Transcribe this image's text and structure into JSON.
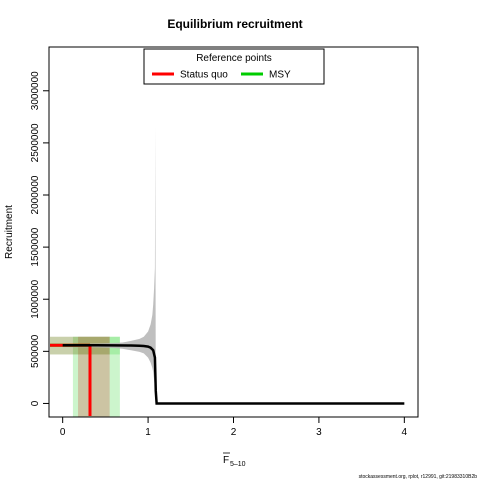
{
  "chart_data": {
    "type": "line",
    "title": "Equilibrium recruitment",
    "xlabel_main": "F",
    "xlabel_sub": "5–10",
    "ylabel": "Recruitment",
    "xlim": [
      -0.16,
      4.16
    ],
    "ylim": [
      -130000,
      3420000
    ],
    "x_ticks": [
      0,
      1,
      2,
      3,
      4
    ],
    "x_tick_labels": [
      "0",
      "1",
      "2",
      "3",
      "4"
    ],
    "y_ticks": [
      0,
      500000,
      1000000,
      1500000,
      2000000,
      2500000,
      3000000
    ],
    "y_tick_labels": [
      "0",
      "500000",
      "1000000",
      "1500000",
      "2000000",
      "2500000",
      "3000000"
    ],
    "series": [
      {
        "name": "",
        "color": "#000000",
        "x": [
          0,
          0.2,
          0.4,
          0.6,
          0.8,
          0.9,
          0.95,
          1.0,
          1.03,
          1.06,
          1.08,
          1.09,
          1.1,
          1.5,
          2,
          2.5,
          3,
          3.5,
          4
        ],
        "y": [
          558000,
          558000,
          558000,
          557000,
          556000,
          554000,
          551000,
          545000,
          535000,
          510000,
          440000,
          120000,
          0,
          0,
          0,
          0,
          0,
          0,
          0
        ]
      }
    ],
    "uncertainty_band": {
      "color": "#b4b4b4",
      "x": [
        0,
        0.4,
        0.6,
        0.7,
        0.8,
        0.9,
        0.95,
        1.0,
        1.03,
        1.05,
        1.06,
        1.07,
        1.08,
        1.085,
        1.09
      ],
      "upper": [
        570000,
        575000,
        580000,
        585000,
        600000,
        620000,
        640000,
        690000,
        760000,
        850000,
        950000,
        1100000,
        1300000,
        2650000,
        0
      ],
      "lower": [
        540000,
        538000,
        532000,
        525000,
        510000,
        495000,
        480000,
        440000,
        390000,
        340000,
        300000,
        230000,
        160000,
        40000,
        0
      ]
    },
    "reference_points": {
      "title": "Reference points",
      "items": [
        {
          "name": "Status quo",
          "color": "#ff0000",
          "f": 0.32,
          "recruitment": 558000,
          "f_interval": [
            0.18,
            0.55
          ],
          "r_interval": [
            470000,
            640000
          ],
          "shade_color": "#cc0000"
        },
        {
          "name": "MSY",
          "color": "#00cc00",
          "f": 0.32,
          "recruitment": 558000,
          "f_interval": [
            0.12,
            0.67
          ],
          "r_interval": [
            470000,
            640000
          ],
          "shade_color": "#00cc00"
        }
      ]
    },
    "grid": false,
    "legend_position": "top"
  },
  "footer": "stockassessment.org, rplot, r12991, git:21983310B2b"
}
